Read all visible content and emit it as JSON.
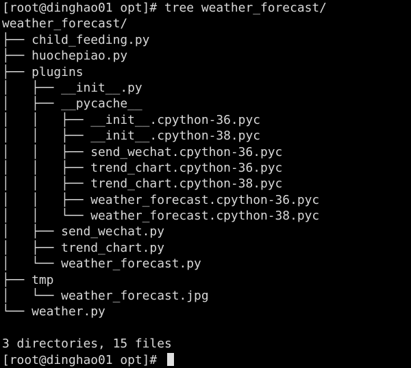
{
  "terminal": {
    "lines": [
      "[root@dinghao01 opt]# tree weather_forecast/",
      "weather_forecast/",
      "├── child_feeding.py",
      "├── huochepiao.py",
      "├── plugins",
      "│   ├── __init__.py",
      "│   ├── __pycache__",
      "│   │   ├── __init__.cpython-36.pyc",
      "│   │   ├── __init__.cpython-38.pyc",
      "│   │   ├── send_wechat.cpython-36.pyc",
      "│   │   ├── trend_chart.cpython-36.pyc",
      "│   │   ├── trend_chart.cpython-38.pyc",
      "│   │   ├── weather_forecast.cpython-36.pyc",
      "│   │   └── weather_forecast.cpython-38.pyc",
      "│   ├── send_wechat.py",
      "│   ├── trend_chart.py",
      "│   └── weather_forecast.py",
      "├── tmp",
      "│   └── weather_forecast.jpg",
      "└── weather.py",
      "",
      "3 directories, 15 files"
    ],
    "prompt": "[root@dinghao01 opt]# "
  }
}
